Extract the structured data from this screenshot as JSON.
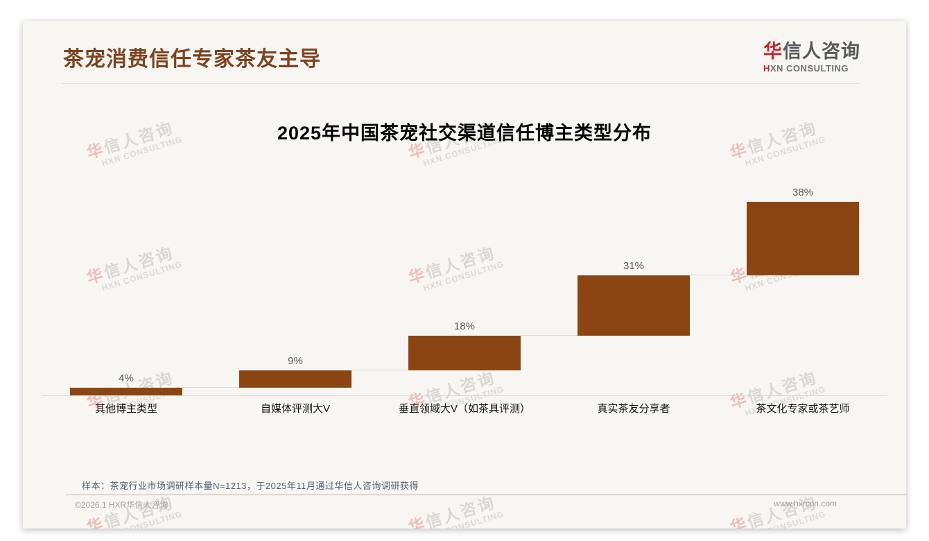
{
  "page": {
    "title": "茶宠消费信任专家茶友主导",
    "logo": {
      "zh_first": "华",
      "zh_rest": "信人咨询",
      "sub_first": "H",
      "sub_rest": "XN CONSULTING"
    },
    "watermark": {
      "line1_first": "华",
      "line1_rest": "信人咨询",
      "line2": "HXN CONSULTING"
    },
    "note": "样本：茶宠行业市场调研样本量N=1213，于2025年11月通过华信人咨询调研获得",
    "footer": {
      "left": "©2026.1 HXR华信人咨询",
      "right": "www.hxrcon.com"
    }
  },
  "chart_data": {
    "type": "bar",
    "subtype": "waterfall",
    "title": "2025年中国茶宠社交渠道信任博主类型分布",
    "categories": [
      "其他博主类型",
      "自媒体评测大V",
      "垂直领域大V（如茶具评测）",
      "真实茶友分享者",
      "茶文化专家或茶艺师"
    ],
    "values": [
      4,
      9,
      18,
      31,
      38
    ],
    "labels": [
      "4%",
      "9%",
      "18%",
      "31%",
      "38%"
    ],
    "cumulative_start": [
      0,
      4,
      13,
      31,
      62
    ],
    "ylim": [
      0,
      100
    ],
    "grid": false,
    "legend": false,
    "bar_color": "#8B4513",
    "connector_color": "#D8D8D8",
    "value_label_color": "#595959",
    "category_label_color": "#141414"
  }
}
